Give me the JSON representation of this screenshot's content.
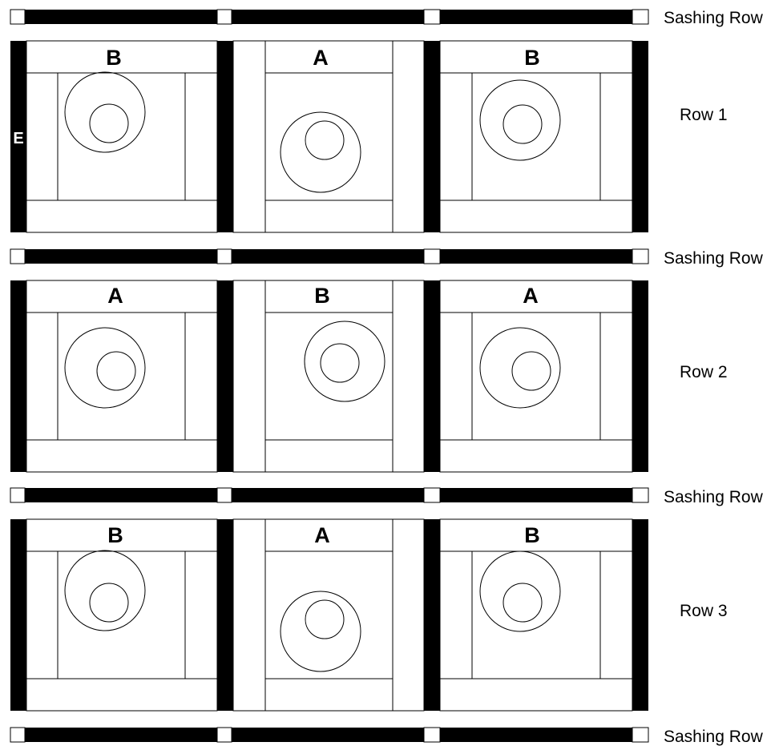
{
  "colors": {
    "black": "#000000",
    "white": "#ffffff"
  },
  "edge_letter": "E",
  "sashing_label": "Sashing Row",
  "rows": [
    {
      "label": "Row 1",
      "blocks": [
        "B",
        "A",
        "B"
      ]
    },
    {
      "label": "Row 2",
      "blocks": [
        "A",
        "B",
        "A"
      ]
    },
    {
      "label": "Row 3",
      "blocks": [
        "B",
        "A",
        "B"
      ]
    }
  ],
  "legend": {
    "sashing_rows": [
      "Sashing Row",
      "Sashing Row",
      "Sashing Row",
      "Sashing Row"
    ]
  }
}
